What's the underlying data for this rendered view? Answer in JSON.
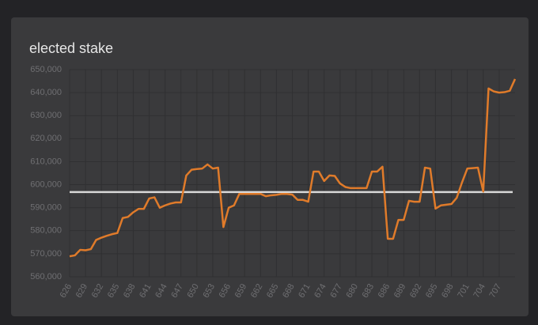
{
  "chart_data": {
    "type": "line",
    "title": "elected stake",
    "x": [
      626,
      627,
      628,
      629,
      630,
      631,
      632,
      633,
      634,
      635,
      636,
      637,
      638,
      639,
      640,
      641,
      642,
      643,
      644,
      645,
      646,
      647,
      648,
      649,
      650,
      651,
      652,
      653,
      654,
      655,
      656,
      657,
      658,
      659,
      660,
      661,
      662,
      663,
      664,
      665,
      666,
      667,
      668,
      669,
      670,
      671,
      672,
      673,
      674,
      675,
      676,
      677,
      678,
      679,
      680,
      681,
      682,
      683,
      684,
      685,
      686,
      687,
      688,
      689,
      690,
      691,
      692,
      693,
      694,
      695,
      696,
      697,
      698,
      699,
      700,
      701,
      702,
      703,
      704,
      705,
      706,
      707,
      708,
      709,
      710
    ],
    "series": [
      {
        "color": "#e07b2a",
        "values": [
          568900,
          569300,
          571700,
          571500,
          572000,
          576000,
          577000,
          577800,
          578500,
          579000,
          585500,
          586000,
          588000,
          589500,
          589500,
          594000,
          594500,
          590000,
          591000,
          591800,
          592300,
          592300,
          604000,
          606500,
          606800,
          607000,
          608800,
          607000,
          607400,
          581600,
          590000,
          591000,
          596000,
          596000,
          596000,
          596000,
          596000,
          595000,
          595400,
          595600,
          596000,
          596000,
          595700,
          593400,
          593400,
          592600,
          605700,
          605700,
          601600,
          604000,
          603800,
          600500,
          599000,
          598500,
          598500,
          598500,
          598500,
          605700,
          605700,
          607800,
          576500,
          576500,
          584700,
          584700,
          593000,
          592600,
          592600,
          607400,
          607000,
          589600,
          591000,
          591300,
          591600,
          594300,
          601000,
          607000,
          607200,
          607400,
          597000,
          641800,
          640500,
          640000,
          640200,
          640800,
          645900
        ]
      }
    ],
    "reference_line": {
      "value": 596800,
      "color": "#d8d8d8"
    },
    "xlim": [
      626,
      710
    ],
    "xticks": [
      626,
      629,
      632,
      635,
      638,
      641,
      644,
      647,
      650,
      653,
      656,
      659,
      662,
      665,
      668,
      671,
      674,
      677,
      680,
      683,
      686,
      689,
      692,
      695,
      698,
      701,
      704,
      707
    ],
    "ylim": [
      560000,
      650000
    ],
    "yticks": [
      {
        "value": 560000,
        "label": "560,000"
      },
      {
        "value": 570000,
        "label": "570,000"
      },
      {
        "value": 580000,
        "label": "580,000"
      },
      {
        "value": 590000,
        "label": "590,000"
      },
      {
        "value": 600000,
        "label": "600,000"
      },
      {
        "value": 610000,
        "label": "610,000"
      },
      {
        "value": 620000,
        "label": "620,000"
      },
      {
        "value": 630000,
        "label": "630,000"
      },
      {
        "value": 640000,
        "label": "640,000"
      },
      {
        "value": 650000,
        "label": "650,000"
      }
    ],
    "grid": true
  }
}
